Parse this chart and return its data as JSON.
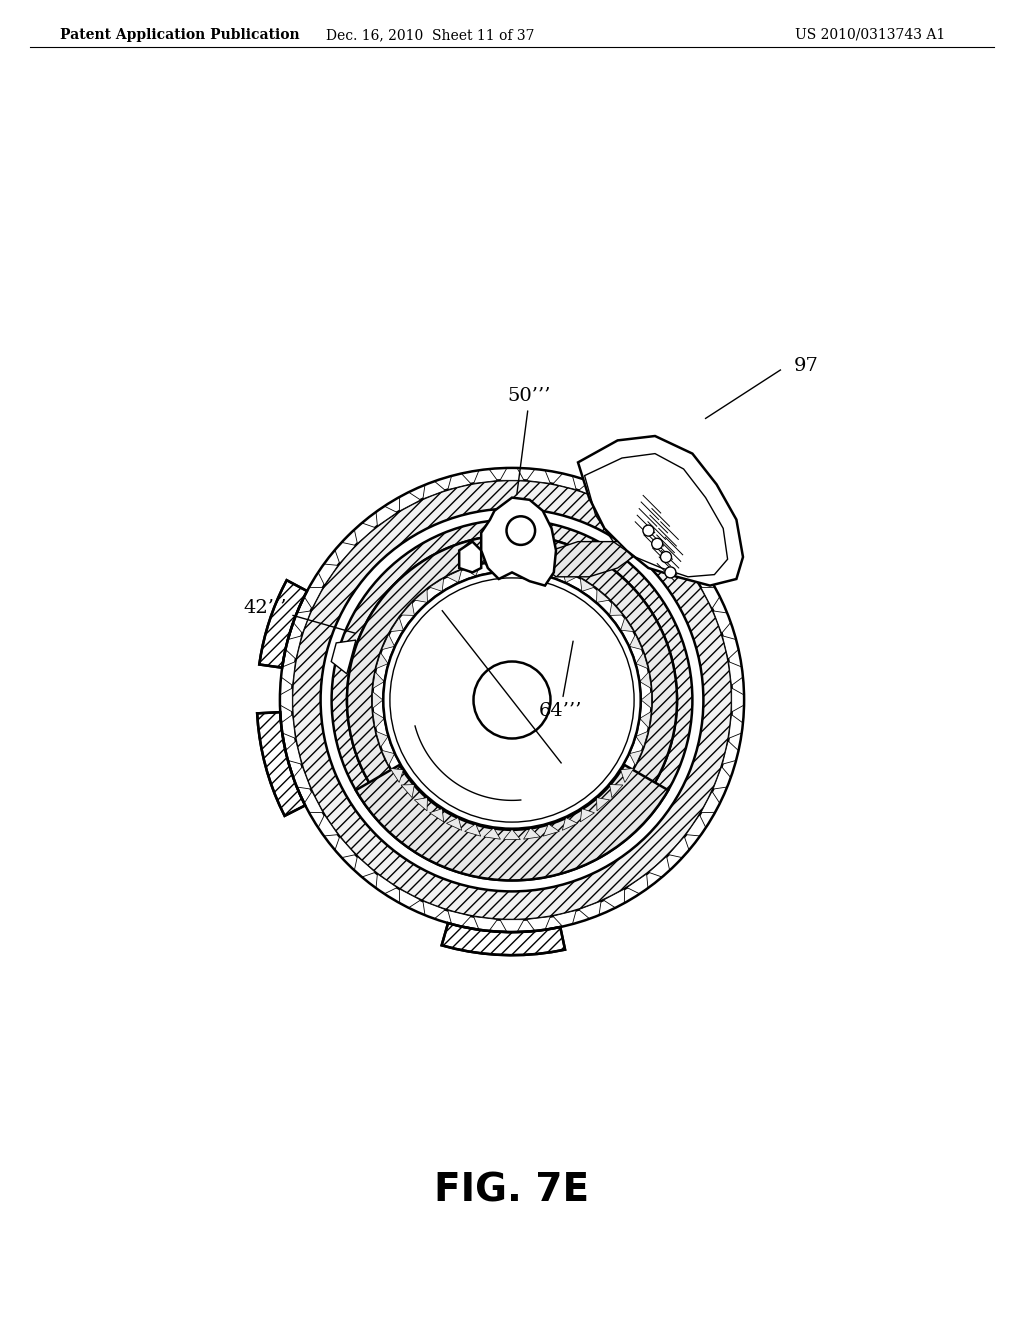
{
  "title": "FIG. 7E",
  "header_left": "Patent Application Publication",
  "header_center": "Dec. 16, 2010  Sheet 11 of 37",
  "header_right": "US 2010/0313743 A1",
  "background_color": "#ffffff",
  "line_color": "#000000",
  "fig_label_fontsize": 28
}
